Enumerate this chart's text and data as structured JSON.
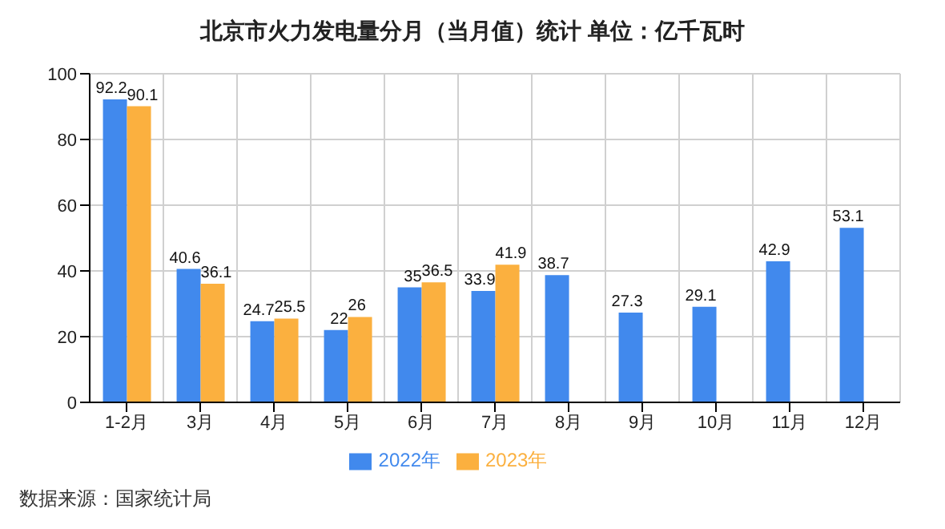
{
  "chart_data": {
    "type": "bar",
    "title": "北京市火力发电量分月（当月值）统计 单位：亿千瓦时",
    "categories": [
      "1-2月",
      "3月",
      "4月",
      "5月",
      "6月",
      "7月",
      "8月",
      "9月",
      "10月",
      "11月",
      "12月"
    ],
    "series": [
      {
        "name": "2022年",
        "color": "#4189ed",
        "values": [
          92.2,
          40.6,
          24.7,
          22,
          35,
          33.9,
          38.7,
          27.3,
          29.1,
          42.9,
          53.1
        ]
      },
      {
        "name": "2023年",
        "color": "#fbb03f",
        "values": [
          90.1,
          36.1,
          25.5,
          26,
          36.5,
          41.9,
          null,
          null,
          null,
          null,
          null
        ]
      }
    ],
    "ylim": [
      0,
      100
    ],
    "yticks": [
      0,
      20,
      40,
      60,
      80,
      100
    ],
    "grid": true,
    "legend": "bottom",
    "data_labels": true,
    "annotations": [
      "数据来源：国家统计局"
    ]
  }
}
